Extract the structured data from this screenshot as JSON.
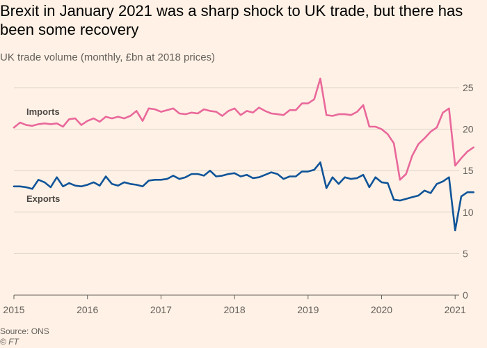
{
  "header": {
    "title": "Brexit in January 2021 was a sharp shock to UK trade, but there has been some recovery",
    "subtitle": "UK trade volume (monthly, £bn at 2018 prices)"
  },
  "footer": {
    "source": "Source: ONS",
    "credit": "© FT"
  },
  "colors": {
    "imports": "#e9689b",
    "exports": "#0f5499",
    "grid": "#dcd2c8",
    "axis": "#66605c"
  },
  "chart_data": {
    "type": "line",
    "title": "Brexit in January 2021 was a sharp shock to UK trade, but there has been some recovery",
    "subtitle": "UK trade volume (monthly, £bn at 2018 prices)",
    "xlabel": "",
    "ylabel": "",
    "x_start": "2015-01",
    "x_frequency": "monthly",
    "xticks": [
      "2015",
      "2016",
      "2017",
      "2018",
      "2019",
      "2020",
      "2021"
    ],
    "yticks": [
      0,
      5,
      10,
      15,
      20,
      25
    ],
    "ylim": [
      0,
      25
    ],
    "y_axis_side": "right",
    "grid": true,
    "series": [
      {
        "name": "Imports",
        "color": "#e9689b",
        "values": [
          20.2,
          20.8,
          20.5,
          20.4,
          20.6,
          20.7,
          20.6,
          20.7,
          20.3,
          21.2,
          21.3,
          20.5,
          21.0,
          21.3,
          20.9,
          21.5,
          21.3,
          21.5,
          21.3,
          21.6,
          22.2,
          21.0,
          22.5,
          22.4,
          22.1,
          22.3,
          22.5,
          21.9,
          21.8,
          22.0,
          21.9,
          22.4,
          22.2,
          22.1,
          21.6,
          22.2,
          22.5,
          21.7,
          22.2,
          22.0,
          22.6,
          22.2,
          21.9,
          21.8,
          21.7,
          22.3,
          22.3,
          23.1,
          23.1,
          23.6,
          26.1,
          21.7,
          21.6,
          21.8,
          21.8,
          21.7,
          22.1,
          22.9,
          20.3,
          20.3,
          20.0,
          19.4,
          18.3,
          13.9,
          14.6,
          16.8,
          18.2,
          18.9,
          19.7,
          20.2,
          22.0,
          22.5,
          15.6,
          16.5,
          17.3,
          17.8
        ]
      },
      {
        "name": "Exports",
        "color": "#0f5499",
        "values": [
          13.1,
          13.1,
          13.0,
          12.8,
          13.9,
          13.6,
          13.0,
          14.2,
          13.1,
          13.5,
          13.2,
          13.1,
          13.3,
          13.6,
          13.2,
          14.3,
          13.4,
          13.2,
          13.6,
          13.4,
          13.3,
          13.1,
          13.8,
          13.9,
          13.9,
          14.0,
          14.4,
          14.0,
          14.2,
          14.6,
          14.6,
          14.4,
          15.0,
          14.3,
          14.4,
          14.6,
          14.7,
          14.3,
          14.5,
          14.1,
          14.2,
          14.5,
          14.8,
          14.6,
          14.0,
          14.3,
          14.3,
          14.9,
          14.9,
          15.1,
          16.0,
          12.9,
          14.2,
          13.4,
          14.2,
          14.0,
          14.1,
          14.5,
          13.0,
          14.2,
          13.6,
          13.5,
          11.5,
          11.4,
          11.6,
          11.8,
          12.0,
          12.6,
          12.3,
          13.4,
          13.7,
          14.2,
          7.8,
          11.9,
          12.4,
          12.4
        ]
      }
    ]
  }
}
